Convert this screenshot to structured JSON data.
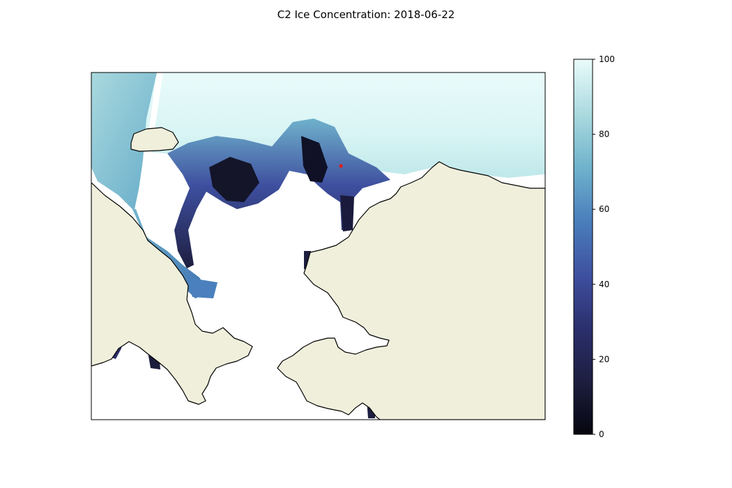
{
  "title": "C2 Ice Concentration: 2018-06-22",
  "colorbar": {
    "min": 0,
    "max": 100,
    "ticks": [
      "0",
      "20",
      "40",
      "60",
      "80",
      "100"
    ],
    "tick_values": [
      0,
      20,
      40,
      60,
      80,
      100
    ],
    "colormap": [
      "#05060e",
      "#1d1e3f",
      "#2b2f6c",
      "#3e4f9f",
      "#4a7fbd",
      "#6fb2cc",
      "#a9d9de",
      "#e9fbfb"
    ]
  },
  "colors": {
    "land": "#efefdc",
    "ocean": "#ffffff",
    "coastline": "#000000",
    "marker": "#e0201c"
  },
  "marker": {
    "label": "",
    "type": "point"
  }
}
